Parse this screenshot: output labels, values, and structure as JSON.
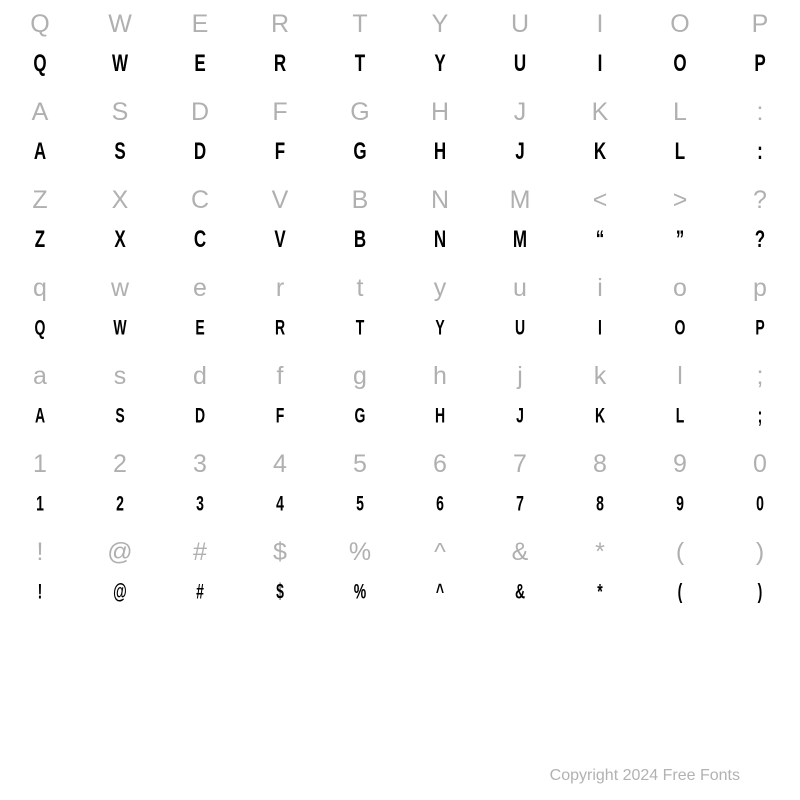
{
  "rows": [
    {
      "style": "light",
      "size": "s-light",
      "cells": [
        "Q",
        "W",
        "E",
        "R",
        "T",
        "Y",
        "U",
        "I",
        "O",
        "P"
      ]
    },
    {
      "style": "dark",
      "size": "s-dark-big",
      "cells": [
        "Q",
        "W",
        "E",
        "R",
        "T",
        "Y",
        "U",
        "I",
        "O",
        "P"
      ]
    },
    {
      "style": "light",
      "size": "s-light",
      "cells": [
        "A",
        "S",
        "D",
        "F",
        "G",
        "H",
        "J",
        "K",
        "L",
        ":"
      ]
    },
    {
      "style": "dark",
      "size": "s-dark-big",
      "cells": [
        "A",
        "S",
        "D",
        "F",
        "G",
        "H",
        "J",
        "K",
        "L",
        ":"
      ]
    },
    {
      "style": "light",
      "size": "s-light",
      "cells": [
        "Z",
        "X",
        "C",
        "V",
        "B",
        "N",
        "M",
        "<",
        ">",
        "?"
      ]
    },
    {
      "style": "dark",
      "size": "s-dark-big",
      "cells": [
        "Z",
        "X",
        "C",
        "V",
        "B",
        "N",
        "M",
        "“",
        "”",
        "?"
      ]
    },
    {
      "style": "light",
      "size": "s-light",
      "cells": [
        "q",
        "w",
        "e",
        "r",
        "t",
        "y",
        "u",
        "i",
        "o",
        "p"
      ]
    },
    {
      "style": "dark",
      "size": "s-dark-small",
      "cells": [
        "Q",
        "W",
        "E",
        "R",
        "T",
        "Y",
        "U",
        "I",
        "O",
        "P"
      ]
    },
    {
      "style": "light",
      "size": "s-light",
      "cells": [
        "a",
        "s",
        "d",
        "f",
        "g",
        "h",
        "j",
        "k",
        "l",
        ";"
      ]
    },
    {
      "style": "dark",
      "size": "s-dark-small",
      "cells": [
        "A",
        "S",
        "D",
        "F",
        "G",
        "H",
        "J",
        "K",
        "L",
        ";"
      ]
    },
    {
      "style": "light",
      "size": "s-light",
      "cells": [
        "1",
        "2",
        "3",
        "4",
        "5",
        "6",
        "7",
        "8",
        "9",
        "0"
      ]
    },
    {
      "style": "dark",
      "size": "s-dark-small",
      "cells": [
        "1",
        "2",
        "3",
        "4",
        "5",
        "6",
        "7",
        "8",
        "9",
        "0"
      ]
    },
    {
      "style": "light",
      "size": "s-light",
      "cells": [
        "!",
        "@",
        "#",
        "$",
        "%",
        "^",
        "&",
        "*",
        "(",
        ")"
      ]
    },
    {
      "style": "dark",
      "size": "s-dark-small",
      "cells": [
        "!",
        "@",
        "#",
        "$",
        "%",
        "^",
        "&",
        "*",
        "(",
        ")"
      ]
    }
  ],
  "copyright": "Copyright 2024 Free Fonts",
  "colors": {
    "light": "#b0b0b0",
    "dark": "#000000",
    "background": "#ffffff",
    "copyright": "#b2b2b2"
  }
}
